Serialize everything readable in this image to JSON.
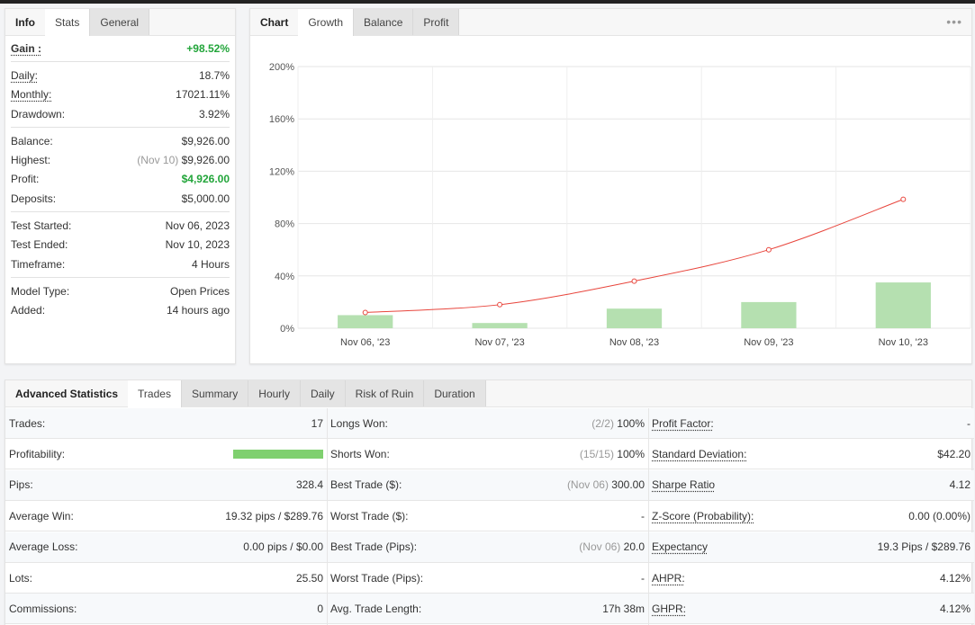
{
  "info_panel": {
    "tabs": [
      "Info",
      "Stats",
      "General"
    ],
    "gain": {
      "label": "Gain :",
      "value": "+98.52%"
    },
    "group1": [
      {
        "label": "Daily:",
        "value": "18.7%"
      },
      {
        "label": "Monthly:",
        "value": "17021.11%"
      },
      {
        "label": "Drawdown:",
        "value": "3.92%"
      }
    ],
    "group2": [
      {
        "label": "Balance:",
        "value": "$9,926.00"
      },
      {
        "label": "Highest:",
        "note": "(Nov 10)",
        "value": "$9,926.00"
      },
      {
        "label": "Profit:",
        "value": "$4,926.00"
      },
      {
        "label": "Deposits:",
        "value": "$5,000.00"
      }
    ],
    "group3": [
      {
        "label": "Test Started:",
        "value": "Nov 06, 2023"
      },
      {
        "label": "Test Ended:",
        "value": "Nov 10, 2023"
      },
      {
        "label": "Timeframe:",
        "value": "4 Hours"
      }
    ],
    "group4": [
      {
        "label": "Model Type:",
        "value": "Open Prices"
      },
      {
        "label": "Added:",
        "value": "14 hours ago"
      }
    ]
  },
  "chart_panel": {
    "tabs": [
      "Chart",
      "Growth",
      "Balance",
      "Profit"
    ],
    "more_icon": "more-horizontal-icon"
  },
  "chart_data": {
    "type": "bar+line",
    "categories": [
      "Nov 06, '23",
      "Nov 07, '23",
      "Nov 08, '23",
      "Nov 09, '23",
      "Nov 10, '23"
    ],
    "y_ticks": [
      "0%",
      "40%",
      "80%",
      "120%",
      "160%",
      "200%"
    ],
    "ylim": [
      0,
      200
    ],
    "series": [
      {
        "type": "bar",
        "color": "#b5e0b0",
        "values": [
          10,
          4,
          15,
          20,
          35
        ]
      },
      {
        "type": "line",
        "color": "#e8453c",
        "values": [
          12,
          18,
          36,
          60,
          98.52
        ]
      }
    ],
    "grid": true
  },
  "advanced": {
    "tabs": [
      "Advanced Statistics",
      "Trades",
      "Summary",
      "Hourly",
      "Daily",
      "Risk of Ruin",
      "Duration"
    ],
    "col1": [
      {
        "label": "Trades:",
        "value": "17"
      },
      {
        "label": "Profitability:",
        "bar": 1.0
      },
      {
        "label": "Pips:",
        "value": "328.4"
      },
      {
        "label": "Average Win:",
        "value": "19.32 pips / $289.76"
      },
      {
        "label": "Average Loss:",
        "value": "0.00 pips / $0.00"
      },
      {
        "label": "Lots:",
        "value": "25.50"
      },
      {
        "label": "Commissions:",
        "value": "0"
      }
    ],
    "col2": [
      {
        "label": "Longs Won:",
        "note": "(2/2)",
        "value": "100%"
      },
      {
        "label": "Shorts Won:",
        "note": "(15/15)",
        "value": "100%"
      },
      {
        "label": "Best Trade ($):",
        "note": "(Nov 06)",
        "value": "300.00"
      },
      {
        "label": "Worst Trade ($):",
        "value": "-"
      },
      {
        "label": "Best Trade (Pips):",
        "note": "(Nov 06)",
        "value": "20.0"
      },
      {
        "label": "Worst Trade (Pips):",
        "value": "-"
      },
      {
        "label": "Avg. Trade Length:",
        "value": "17h 38m"
      }
    ],
    "col3": [
      {
        "label": "Profit Factor:",
        "value": "-"
      },
      {
        "label": "Standard Deviation:",
        "value": "$42.20"
      },
      {
        "label": "Sharpe Ratio",
        "value": "4.12"
      },
      {
        "label": "Z-Score (Probability):",
        "value": "0.00 (0.00%)"
      },
      {
        "label": "Expectancy",
        "value": "19.3 Pips / $289.76"
      },
      {
        "label": "AHPR:",
        "value": "4.12%"
      },
      {
        "label": "GHPR:",
        "value": "4.12%"
      }
    ]
  }
}
